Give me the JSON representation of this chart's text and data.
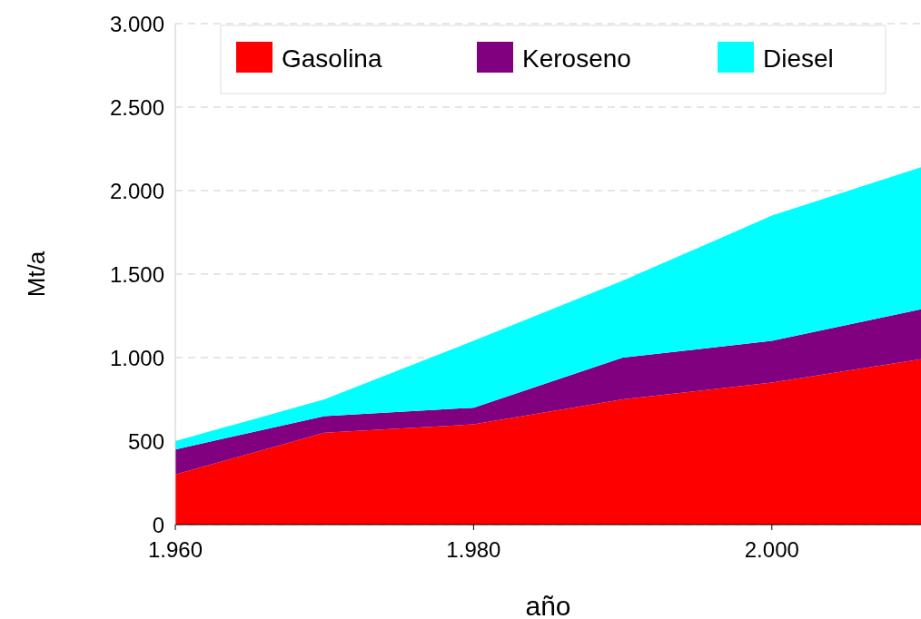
{
  "chart_data": {
    "type": "area",
    "stacked": true,
    "xlabel": "año",
    "ylabel": "Mt/a",
    "x": [
      1960,
      1970,
      1980,
      1990,
      2000,
      2010
    ],
    "series": [
      {
        "name": "Gasolina",
        "color": "#ff0000",
        "values": [
          300,
          550,
          600,
          750,
          850,
          990
        ]
      },
      {
        "name": "Keroseno",
        "color": "#800080",
        "values": [
          150,
          100,
          100,
          250,
          250,
          300
        ]
      },
      {
        "name": "Diesel",
        "color": "#00ffff",
        "values": [
          50,
          100,
          400,
          460,
          750,
          850
        ]
      }
    ],
    "xlim": [
      1960,
      2010
    ],
    "xticks": [
      {
        "value": 1960,
        "label": "1.960"
      },
      {
        "value": 1980,
        "label": "1.980"
      },
      {
        "value": 2000,
        "label": "2.000"
      }
    ],
    "ylim": [
      0,
      3000
    ],
    "yticks": [
      0,
      500,
      {
        "value": 1000,
        "label": "1.000"
      },
      {
        "value": 1500,
        "label": "1.500"
      },
      {
        "value": 2000,
        "label": "2.000"
      },
      {
        "value": 2500,
        "label": "2.500"
      },
      {
        "value": 3000,
        "label": "3.000"
      }
    ],
    "grid": "y",
    "legend": "top"
  }
}
